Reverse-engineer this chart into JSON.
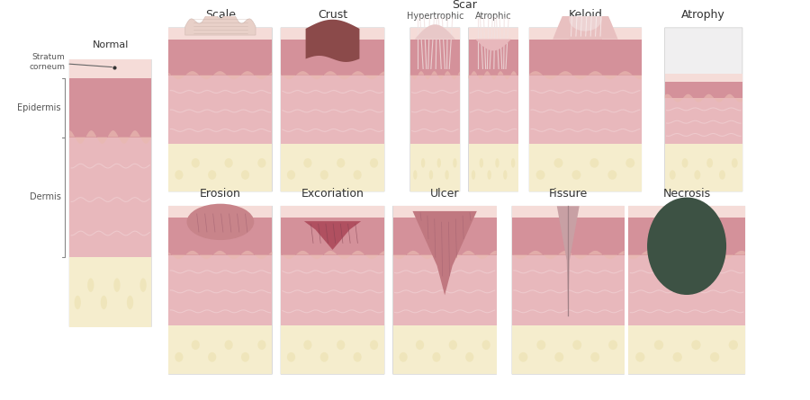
{
  "bg_color": "#ffffff",
  "panel_bg": "#f0eff0",
  "skin_stratum": "#f5dcd8",
  "skin_epidermis_top": "#e8b8b0",
  "skin_epidermis": "#d4919a",
  "skin_dermis": "#e8b8bc",
  "skin_dermis_light": "#edc5c8",
  "skin_fat": "#f5edcd",
  "skin_fat_dark": "#e8dba0",
  "dermis_lines": "#f0d0d3",
  "necrosis_color": "#3d5244",
  "crust_color": "#8b4a4a",
  "scar_lines": "#f0eaea",
  "keloid_color": "#e8c0c0",
  "title_fontsize": 9,
  "label_fontsize": 7.5,
  "top_row_labels": [
    "Erosion",
    "Excoriation",
    "Ulcer",
    "Fissure",
    "Necrosis"
  ],
  "bottom_row_labels": [
    "Scale",
    "Crust",
    "Scar",
    "Keloid",
    "Atrophy"
  ],
  "sub_labels": [
    "Hypertrophic",
    "Atrophic"
  ],
  "normal_label": "Normal",
  "layer_labels": [
    "Stratum\ncorneum",
    "Epidermis",
    "Dermis"
  ]
}
